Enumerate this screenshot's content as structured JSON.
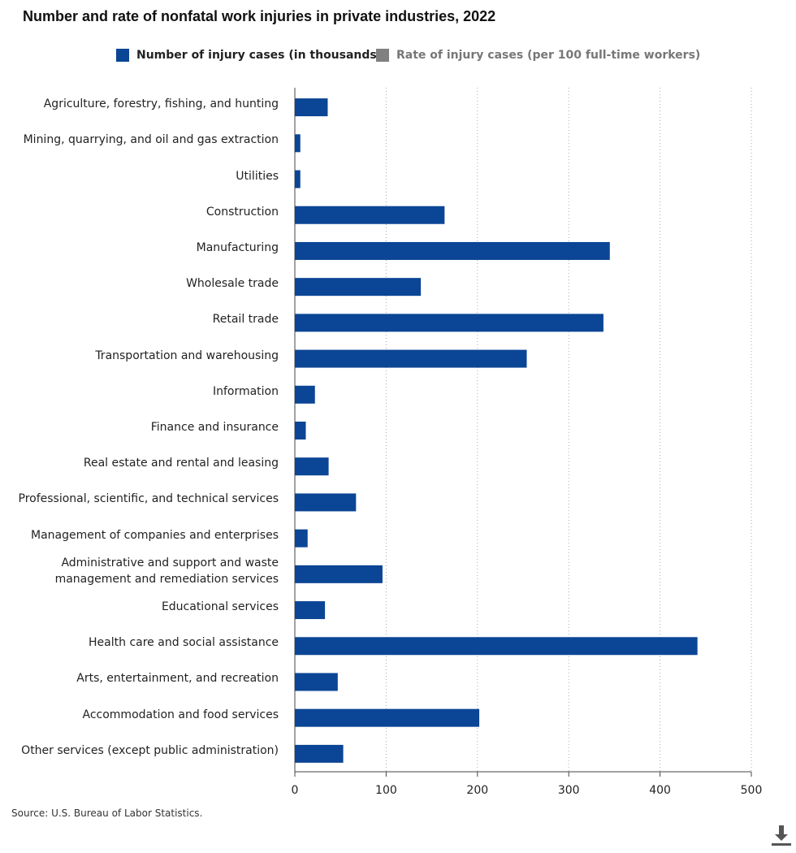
{
  "chart_data": {
    "type": "barh",
    "title": "Number and rate of nonfatal work injuries in private industries, 2022",
    "source": "Source: U.S. Bureau of Labor Statistics.",
    "categories": [
      "Agriculture, forestry, fishing, and hunting",
      "Mining, quarrying, and oil and gas extraction",
      "Utilities",
      "Construction",
      "Manufacturing",
      "Wholesale trade",
      "Retail trade",
      "Transportation and warehousing",
      "Information",
      "Finance and insurance",
      "Real estate and rental and leasing",
      "Professional, scientific, and technical services",
      "Management of companies and enterprises",
      "Administrative and support and waste management and remediation services",
      "Educational services",
      "Health care and social assistance",
      "Arts, entertainment, and recreation",
      "Accommodation and food services",
      "Other services (except public administration)"
    ],
    "series": [
      {
        "name": "Number of injury cases (in thousands)",
        "color": "#0b4595",
        "values": [
          36,
          6,
          6,
          164,
          345,
          138,
          338,
          254,
          22,
          12,
          37,
          67,
          14,
          96,
          33,
          441,
          47,
          202,
          53
        ]
      },
      {
        "name": "Rate of injury cases (per 100 full-time workers)",
        "color": "#808080",
        "hidden": true
      }
    ],
    "xlim": [
      0,
      500
    ],
    "xticks": [
      0,
      100,
      200,
      300,
      400,
      500
    ],
    "grid": true
  }
}
